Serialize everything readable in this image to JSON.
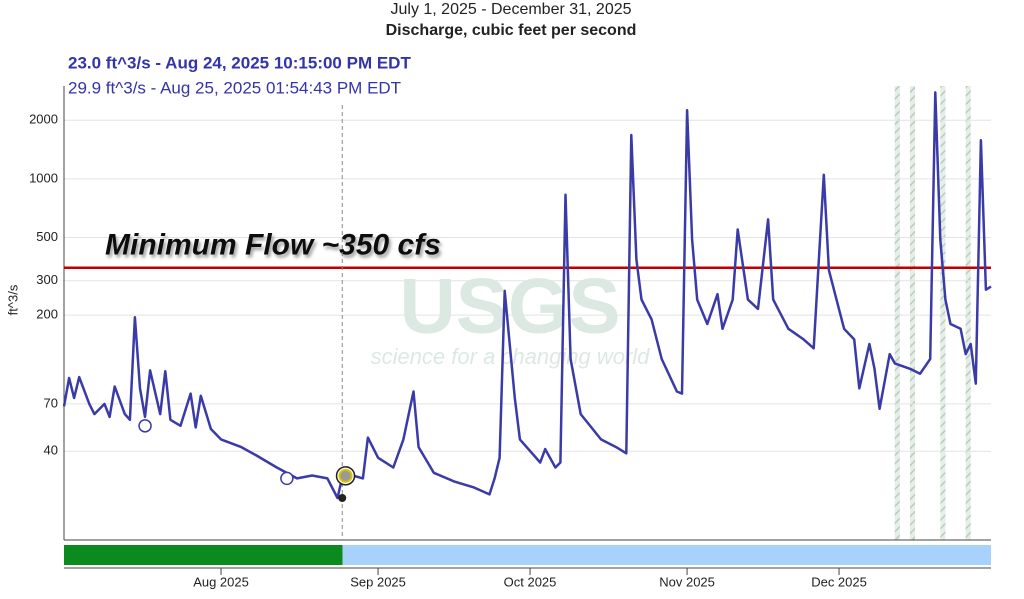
{
  "chart_data": {
    "type": "line",
    "title": "July 1, 2025 - December 31, 2025",
    "subtitle": "Discharge, cubic feet per second",
    "y_label": "ft^3/s",
    "log_y": true,
    "grid": true,
    "color": "#3a3aa8",
    "xlim": [
      "2025-07-01",
      "2025-12-31"
    ],
    "ylim": [
      14,
      3000
    ],
    "yticks": [
      40,
      70,
      200,
      300,
      500,
      1000,
      2000
    ],
    "xticks": [
      {
        "value": "2025-08-01",
        "label": "Aug 2025"
      },
      {
        "value": "2025-09-01",
        "label": "Sep 2025"
      },
      {
        "value": "2025-10-01",
        "label": "Oct 2025"
      },
      {
        "value": "2025-11-01",
        "label": "Nov 2025"
      },
      {
        "value": "2025-12-01",
        "label": "Dec 2025"
      }
    ],
    "x": [
      "2025-07-01",
      "2025-07-02",
      "2025-07-03",
      "2025-07-04",
      "2025-07-06",
      "2025-07-07",
      "2025-07-09",
      "2025-07-10",
      "2025-07-11",
      "2025-07-13",
      "2025-07-14",
      "2025-07-15",
      "2025-07-16",
      "2025-07-17",
      "2025-07-18",
      "2025-07-20",
      "2025-07-21",
      "2025-07-22",
      "2025-07-24",
      "2025-07-26",
      "2025-07-27",
      "2025-07-28",
      "2025-07-30",
      "2025-08-01",
      "2025-08-05",
      "2025-08-08",
      "2025-08-12",
      "2025-08-16",
      "2025-08-19",
      "2025-08-22",
      "2025-08-24",
      "2025-08-25",
      "2025-08-26",
      "2025-08-27",
      "2025-08-29",
      "2025-08-30",
      "2025-09-01",
      "2025-09-04",
      "2025-09-06",
      "2025-09-08",
      "2025-09-09",
      "2025-09-12",
      "2025-09-16",
      "2025-09-20",
      "2025-09-23",
      "2025-09-24",
      "2025-09-25",
      "2025-09-26",
      "2025-09-28",
      "2025-09-29",
      "2025-10-03",
      "2025-10-04",
      "2025-10-06",
      "2025-10-07",
      "2025-10-08",
      "2025-10-09",
      "2025-10-11",
      "2025-10-15",
      "2025-10-18",
      "2025-10-20",
      "2025-10-21",
      "2025-10-22",
      "2025-10-23",
      "2025-10-25",
      "2025-10-27",
      "2025-10-30",
      "2025-10-31",
      "2025-11-01",
      "2025-11-02",
      "2025-11-03",
      "2025-11-05",
      "2025-11-07",
      "2025-11-08",
      "2025-11-10",
      "2025-11-11",
      "2025-11-13",
      "2025-11-15",
      "2025-11-17",
      "2025-11-18",
      "2025-11-21",
      "2025-11-24",
      "2025-11-26",
      "2025-11-28",
      "2025-11-29",
      "2025-12-02",
      "2025-12-04",
      "2025-12-05",
      "2025-12-07",
      "2025-12-08",
      "2025-12-09",
      "2025-12-11",
      "2025-12-12",
      "2025-12-15",
      "2025-12-17",
      "2025-12-19",
      "2025-12-20",
      "2025-12-21",
      "2025-12-22",
      "2025-12-23",
      "2025-12-25",
      "2025-12-26",
      "2025-12-27",
      "2025-12-28",
      "2025-12-29",
      "2025-12-30",
      "2025-12-31"
    ],
    "values": [
      68,
      95,
      75,
      96,
      70,
      62,
      70,
      60,
      86,
      62,
      58,
      195,
      84,
      60,
      104,
      62,
      103,
      58,
      54,
      79,
      53,
      77,
      52,
      46,
      42,
      38,
      33,
      29,
      30,
      29,
      23,
      30,
      33,
      30,
      29,
      47,
      37,
      33,
      46,
      81,
      42,
      31,
      28,
      26,
      24,
      29,
      37,
      266,
      75,
      46,
      35,
      41,
      33,
      35,
      830,
      119,
      62,
      46,
      42,
      39,
      1680,
      386,
      240,
      190,
      119,
      81,
      79,
      2250,
      490,
      240,
      180,
      256,
      170,
      240,
      550,
      240,
      215,
      620,
      240,
      170,
      150,
      135,
      1050,
      340,
      170,
      150,
      84,
      142,
      106,
      66,
      126,
      113,
      106,
      100,
      119,
      2780,
      490,
      240,
      180,
      170,
      126,
      142,
      89,
      1580,
      270,
      280
    ],
    "threshold": {
      "value": 350,
      "label": "Minimum Flow ~350 cfs",
      "color": "#c00000"
    },
    "tooltips": [
      {
        "text": "23.0 ft^3/s - Aug 24, 2025 10:15:00 PM EDT",
        "x": "2025-08-24T22:15:00",
        "value": 23.0
      },
      {
        "text": "29.9 ft^3/s - Aug 25, 2025 01:54:43 PM EDT",
        "x": "2025-08-25T13:54:43",
        "value": 29.9
      }
    ],
    "markers": [
      {
        "x": "2025-07-17",
        "value": 54
      },
      {
        "x": "2025-08-14",
        "value": 29
      }
    ],
    "shaded_periods": [
      [
        "2025-12-12",
        "2025-12-13"
      ],
      [
        "2025-12-15",
        "2025-12-16"
      ],
      [
        "2025-12-21",
        "2025-12-22"
      ],
      [
        "2025-12-26",
        "2025-12-27"
      ]
    ],
    "status_periods": [
      {
        "start": "2025-07-01",
        "end": "2025-08-25",
        "color": "#0b8a1e"
      },
      {
        "start": "2025-08-25",
        "end": "2025-12-31",
        "color": "#a6d2fb"
      }
    ],
    "watermark": {
      "title": "USGS",
      "tagline": "science for a changing world"
    }
  }
}
